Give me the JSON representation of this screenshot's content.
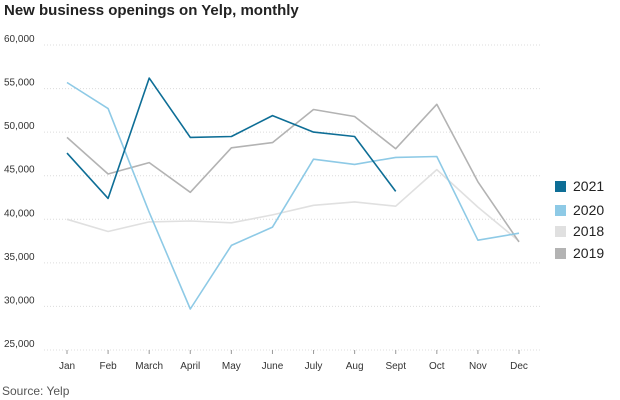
{
  "chart_data": {
    "type": "line",
    "title": "New business openings on Yelp, monthly",
    "categories": [
      "Jan",
      "Feb",
      "March",
      "April",
      "May",
      "June",
      "July",
      "Aug",
      "Sept",
      "Oct",
      "Nov",
      "Dec"
    ],
    "y_ticks": [
      "60,000",
      "55,000",
      "50,000",
      "45,000",
      "40,000",
      "35,000",
      "30,000",
      "25,000"
    ],
    "ylim": [
      25000,
      60000
    ],
    "grid": true,
    "legend_position": "right",
    "series": [
      {
        "name": "2021",
        "color": "#0e6e96",
        "values": [
          47600,
          42400,
          56200,
          49400,
          49500,
          51900,
          50000,
          49500,
          43200,
          null,
          null,
          null
        ]
      },
      {
        "name": "2020",
        "color": "#8ecae6",
        "values": [
          55700,
          52700,
          40800,
          29700,
          37000,
          39100,
          46900,
          46300,
          47100,
          47200,
          37600,
          38400
        ]
      },
      {
        "name": "2018",
        "color": "#e0e0e0",
        "values": [
          40000,
          38600,
          39700,
          39800,
          39600,
          40500,
          41600,
          42000,
          41500,
          45700,
          41400,
          37500
        ]
      },
      {
        "name": "2019",
        "color": "#b3b3b3",
        "values": [
          49400,
          45200,
          46500,
          43100,
          48200,
          48800,
          52600,
          51800,
          48100,
          53200,
          44300,
          37400
        ]
      }
    ],
    "source": "Source: Yelp"
  }
}
